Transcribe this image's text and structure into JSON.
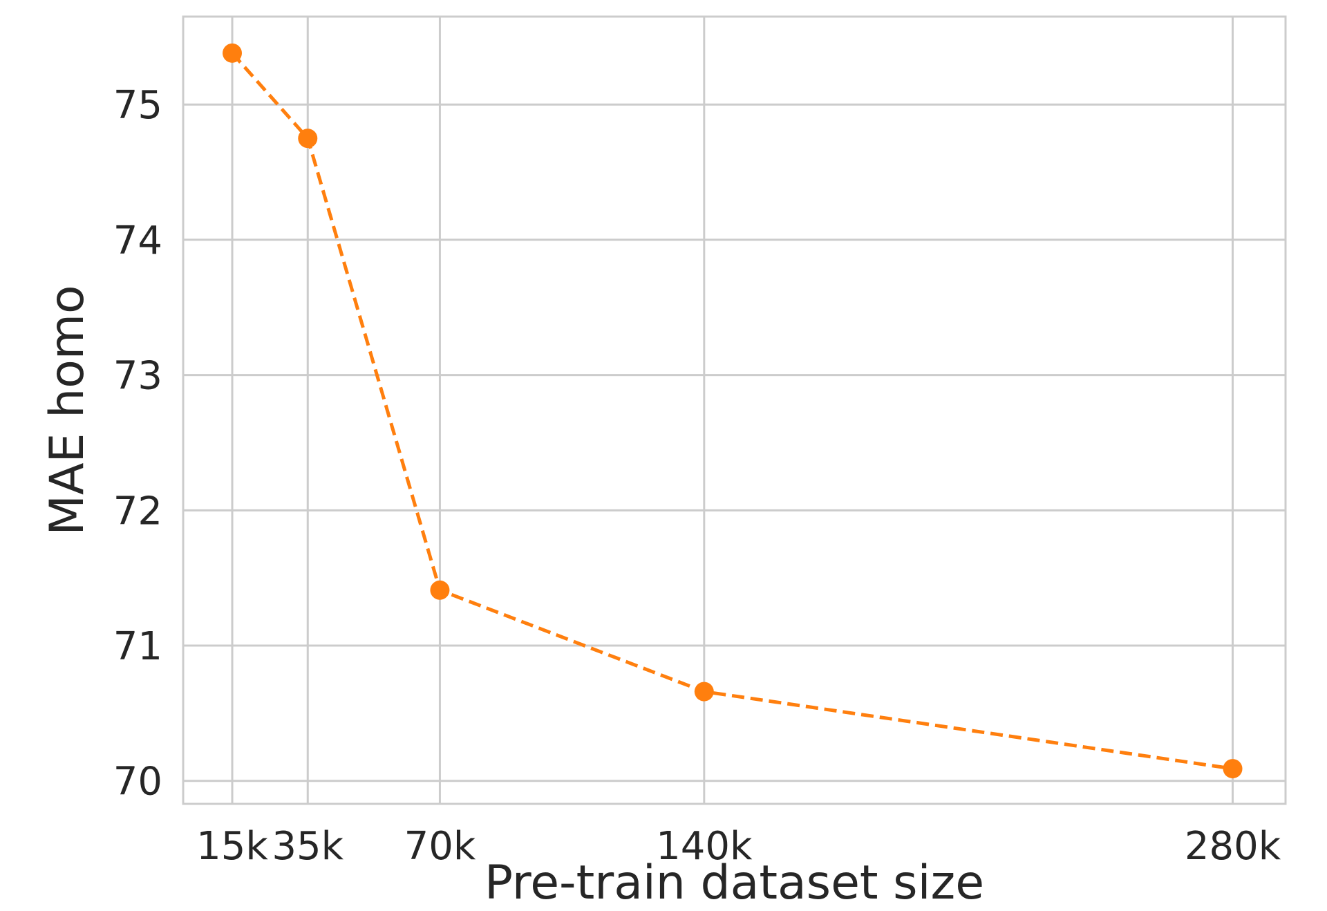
{
  "chart_data": {
    "type": "line",
    "xlabel": "Pre-train dataset size",
    "ylabel": "MAE homo",
    "x": [
      15000,
      35000,
      70000,
      140000,
      280000
    ],
    "xtick_values": [
      15000,
      35000,
      70000,
      140000,
      280000
    ],
    "xtick_labels": [
      "15k",
      "35k",
      "70k",
      "140k",
      "280k"
    ],
    "ytick_values": [
      70,
      71,
      72,
      73,
      74,
      75
    ],
    "ytick_labels": [
      "70",
      "71",
      "72",
      "73",
      "74",
      "75"
    ],
    "xlim": [
      2000,
      294000
    ],
    "ylim": [
      69.83,
      75.65
    ],
    "grid": true,
    "series": [
      {
        "values": [
          75.38,
          74.75,
          71.41,
          70.66,
          70.09
        ],
        "color": "#ff7f0e",
        "line_style": "dashed",
        "marker": "circle"
      }
    ]
  }
}
